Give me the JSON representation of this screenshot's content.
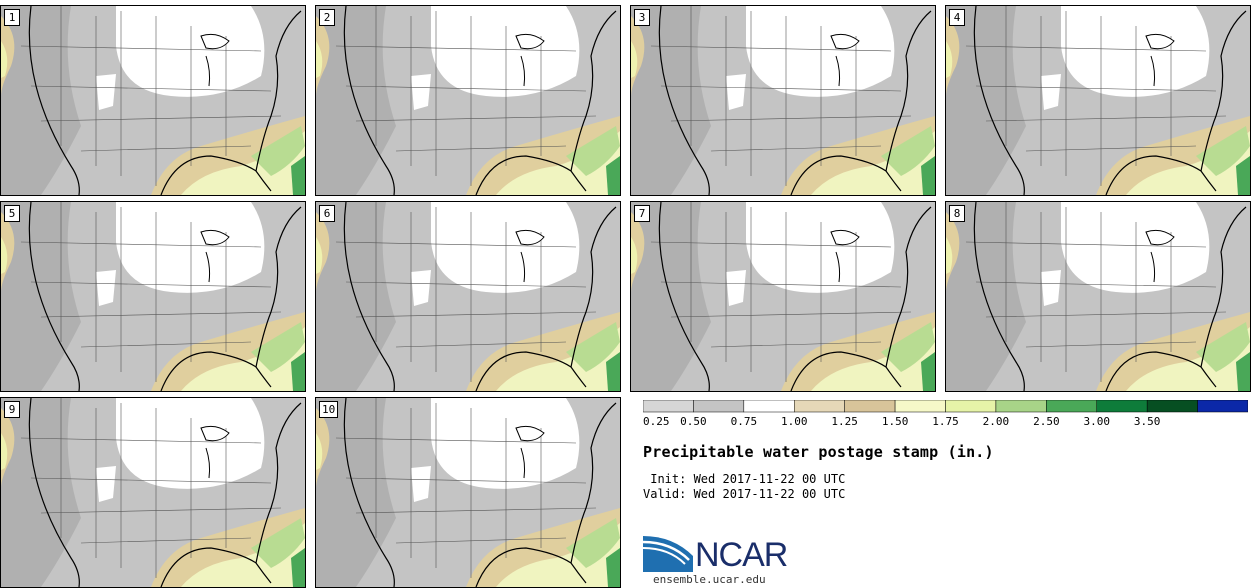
{
  "panels": [
    "1",
    "2",
    "3",
    "4",
    "5",
    "6",
    "7",
    "8",
    "9",
    "10"
  ],
  "colorbar": {
    "ticks": [
      "0.25",
      "0.50",
      "0.75",
      "1.00",
      "1.25",
      "1.50",
      "1.75",
      "2.00",
      "2.50",
      "3.00",
      "3.50"
    ],
    "colors": [
      "#d6d6d6",
      "#c4c4c4",
      "#ffffff",
      "#e6d8b8",
      "#d8c49a",
      "#f6f8c8",
      "#e6f3a8",
      "#a8d488",
      "#4aa858",
      "#0e7c3a",
      "#064f22",
      "#0b28a8"
    ]
  },
  "title": "Precipitable water postage stamp (in.)",
  "init": " Init: Wed 2017-11-22 00 UTC",
  "valid": "Valid: Wed 2017-11-22 00 UTC",
  "logo": {
    "text": "NCAR",
    "url": "ensemble.ucar.edu"
  }
}
